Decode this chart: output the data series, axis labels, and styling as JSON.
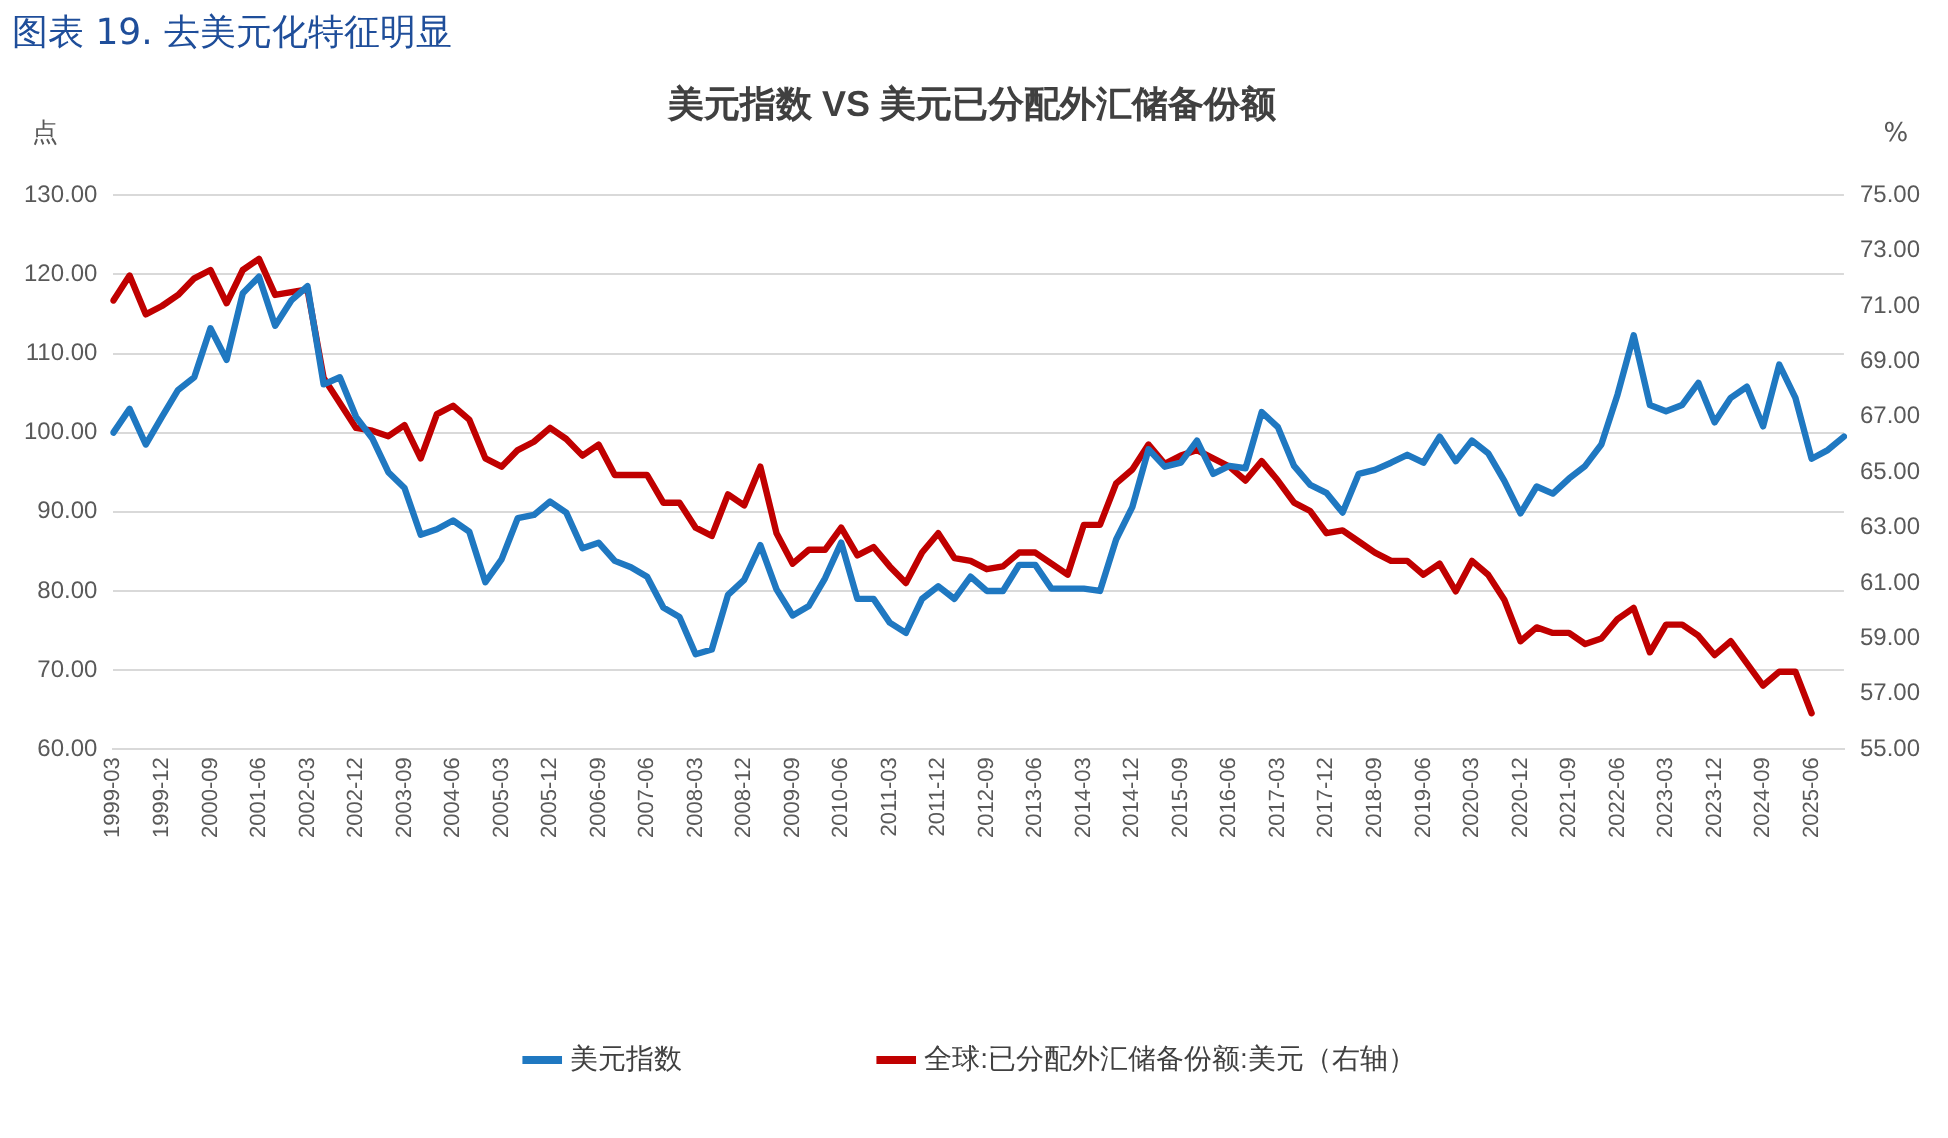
{
  "chart_data": {
    "type": "line",
    "title": "美元指数 VS 美元已分配外汇储备份额",
    "annotations": [
      "图表 19. 去美元化特征明显"
    ],
    "ylabel": "点",
    "y2label": "%",
    "categories": [
      "1999-03",
      null,
      null,
      "1999-12",
      null,
      null,
      "2000-09",
      null,
      null,
      "2001-06",
      null,
      null,
      "2002-03",
      null,
      null,
      "2002-12",
      null,
      null,
      "2003-09",
      null,
      null,
      "2004-06",
      null,
      null,
      "2005-03",
      null,
      null,
      "2005-12",
      null,
      null,
      "2006-09",
      null,
      null,
      "2007-06",
      null,
      null,
      "2008-03",
      null,
      null,
      "2008-12",
      null,
      null,
      "2009-09",
      null,
      null,
      "2010-06",
      null,
      null,
      "2011-03",
      null,
      null,
      "2011-12",
      null,
      null,
      "2012-09",
      null,
      null,
      "2013-06",
      null,
      null,
      "2014-03",
      null,
      null,
      "2014-12",
      null,
      null,
      "2015-09",
      null,
      null,
      "2016-06",
      null,
      null,
      "2017-03",
      null,
      null,
      "2017-12",
      null,
      null,
      "2018-09",
      null,
      null,
      "2019-06",
      null,
      null,
      "2020-03",
      null,
      null,
      "2020-12",
      null,
      null,
      "2021-09",
      null,
      null,
      "2022-06",
      null,
      null,
      "2023-03",
      null,
      null,
      "2023-12",
      null,
      null,
      "2024-09",
      null,
      null,
      "2025-06",
      null,
      null
    ],
    "series": [
      {
        "name": "美元指数",
        "color": "#1f78c1",
        "values": [
          100,
          103,
          98.5,
          102,
          105.4,
          107,
          113.2,
          109.2,
          117.6,
          119.7,
          113.5,
          116.7,
          118.5,
          106.1,
          107,
          102,
          99.3,
          95,
          93,
          87.1,
          87.8,
          88.9,
          87.5,
          81.1,
          84,
          89.2,
          89.6,
          91.3,
          89.9,
          85.4,
          86.1,
          83.8,
          83,
          81.8,
          77.9,
          76.7,
          72,
          72.6,
          79.5,
          81.4,
          85.8,
          80.2,
          76.9,
          78.1,
          81.6,
          86.1,
          79,
          79,
          76,
          74.7,
          79,
          80.6,
          79,
          81.8,
          80,
          80,
          83.3,
          83.3,
          80.3,
          80.3,
          80.3,
          80,
          86.5,
          90.6,
          97.9,
          95.7,
          96.2,
          99,
          94.8,
          95.8,
          95.5,
          102.6,
          100.7,
          95.8,
          93.4,
          92.4,
          89.9,
          94.8,
          95.3,
          96.2,
          97.2,
          96.2,
          99.5,
          96.4,
          99,
          97.4,
          93.9,
          89.8,
          93.2,
          92.3,
          94.2,
          95.8,
          98.5,
          104.8,
          112.3,
          103.5,
          102.7,
          103.5,
          106.3,
          101.3,
          104.4,
          105.8,
          100.8,
          108.6,
          104.4,
          96.7,
          97.8,
          99.5
        ]
      },
      {
        "name": "全球:已分配外汇储备份额:美元（右轴）",
        "color": "#c00000",
        "axis": "y2",
        "values": [
          71.2,
          72.1,
          70.7,
          71,
          71.4,
          72,
          72.3,
          71.1,
          72.3,
          72.7,
          71.4,
          71.5,
          71.6,
          68.4,
          67.5,
          66.6,
          66.5,
          66.3,
          66.7,
          65.5,
          67.1,
          67.4,
          66.9,
          65.5,
          65.2,
          65.8,
          66.1,
          66.6,
          66.2,
          65.6,
          66,
          64.9,
          64.9,
          64.9,
          63.9,
          63.9,
          63,
          62.7,
          64.2,
          63.8,
          65.2,
          62.8,
          61.7,
          62.2,
          62.2,
          63,
          62,
          62.3,
          61.6,
          61,
          62.1,
          62.8,
          61.9,
          61.8,
          61.5,
          61.6,
          62.1,
          62.1,
          61.7,
          61.3,
          63.1,
          63.1,
          64.6,
          65.1,
          66,
          65.3,
          65.6,
          65.8,
          65.5,
          65.2,
          64.7,
          65.4,
          64.7,
          63.9,
          63.6,
          62.8,
          62.9,
          62.5,
          62.1,
          61.8,
          61.8,
          61.3,
          61.7,
          60.7,
          61.8,
          61.3,
          60.4,
          58.9,
          59.4,
          59.2,
          59.2,
          58.8,
          59,
          59.7,
          60.1,
          58.5,
          59.5,
          59.5,
          59.1,
          58.4,
          58.9,
          58.1,
          57.3,
          57.8,
          57.8,
          56.3,
          null,
          null
        ]
      }
    ],
    "ylim": [
      60,
      130
    ],
    "yticks": [
      {
        "value": 60,
        "label": "60.00"
      },
      {
        "value": 70,
        "label": "70.00"
      },
      {
        "value": 80,
        "label": "80.00"
      },
      {
        "value": 90,
        "label": "90.00"
      },
      {
        "value": 100,
        "label": "100.00"
      },
      {
        "value": 110,
        "label": "110.00"
      },
      {
        "value": 120,
        "label": "120.00"
      },
      {
        "value": 130,
        "label": "130.00"
      }
    ],
    "y2lim": [
      55,
      75
    ],
    "y2ticks": [
      {
        "value": 55,
        "label": "55.00"
      },
      {
        "value": 57,
        "label": "57.00"
      },
      {
        "value": 59,
        "label": "59.00"
      },
      {
        "value": 61,
        "label": "61.00"
      },
      {
        "value": 63,
        "label": "63.00"
      },
      {
        "value": 65,
        "label": "65.00"
      },
      {
        "value": 67,
        "label": "67.00"
      },
      {
        "value": 69,
        "label": "69.00"
      },
      {
        "value": 71,
        "label": "71.00"
      },
      {
        "value": 73,
        "label": "73.00"
      },
      {
        "value": 75,
        "label": "75.00"
      }
    ],
    "grid": "y",
    "legend": "bottom",
    "marker": "none"
  }
}
